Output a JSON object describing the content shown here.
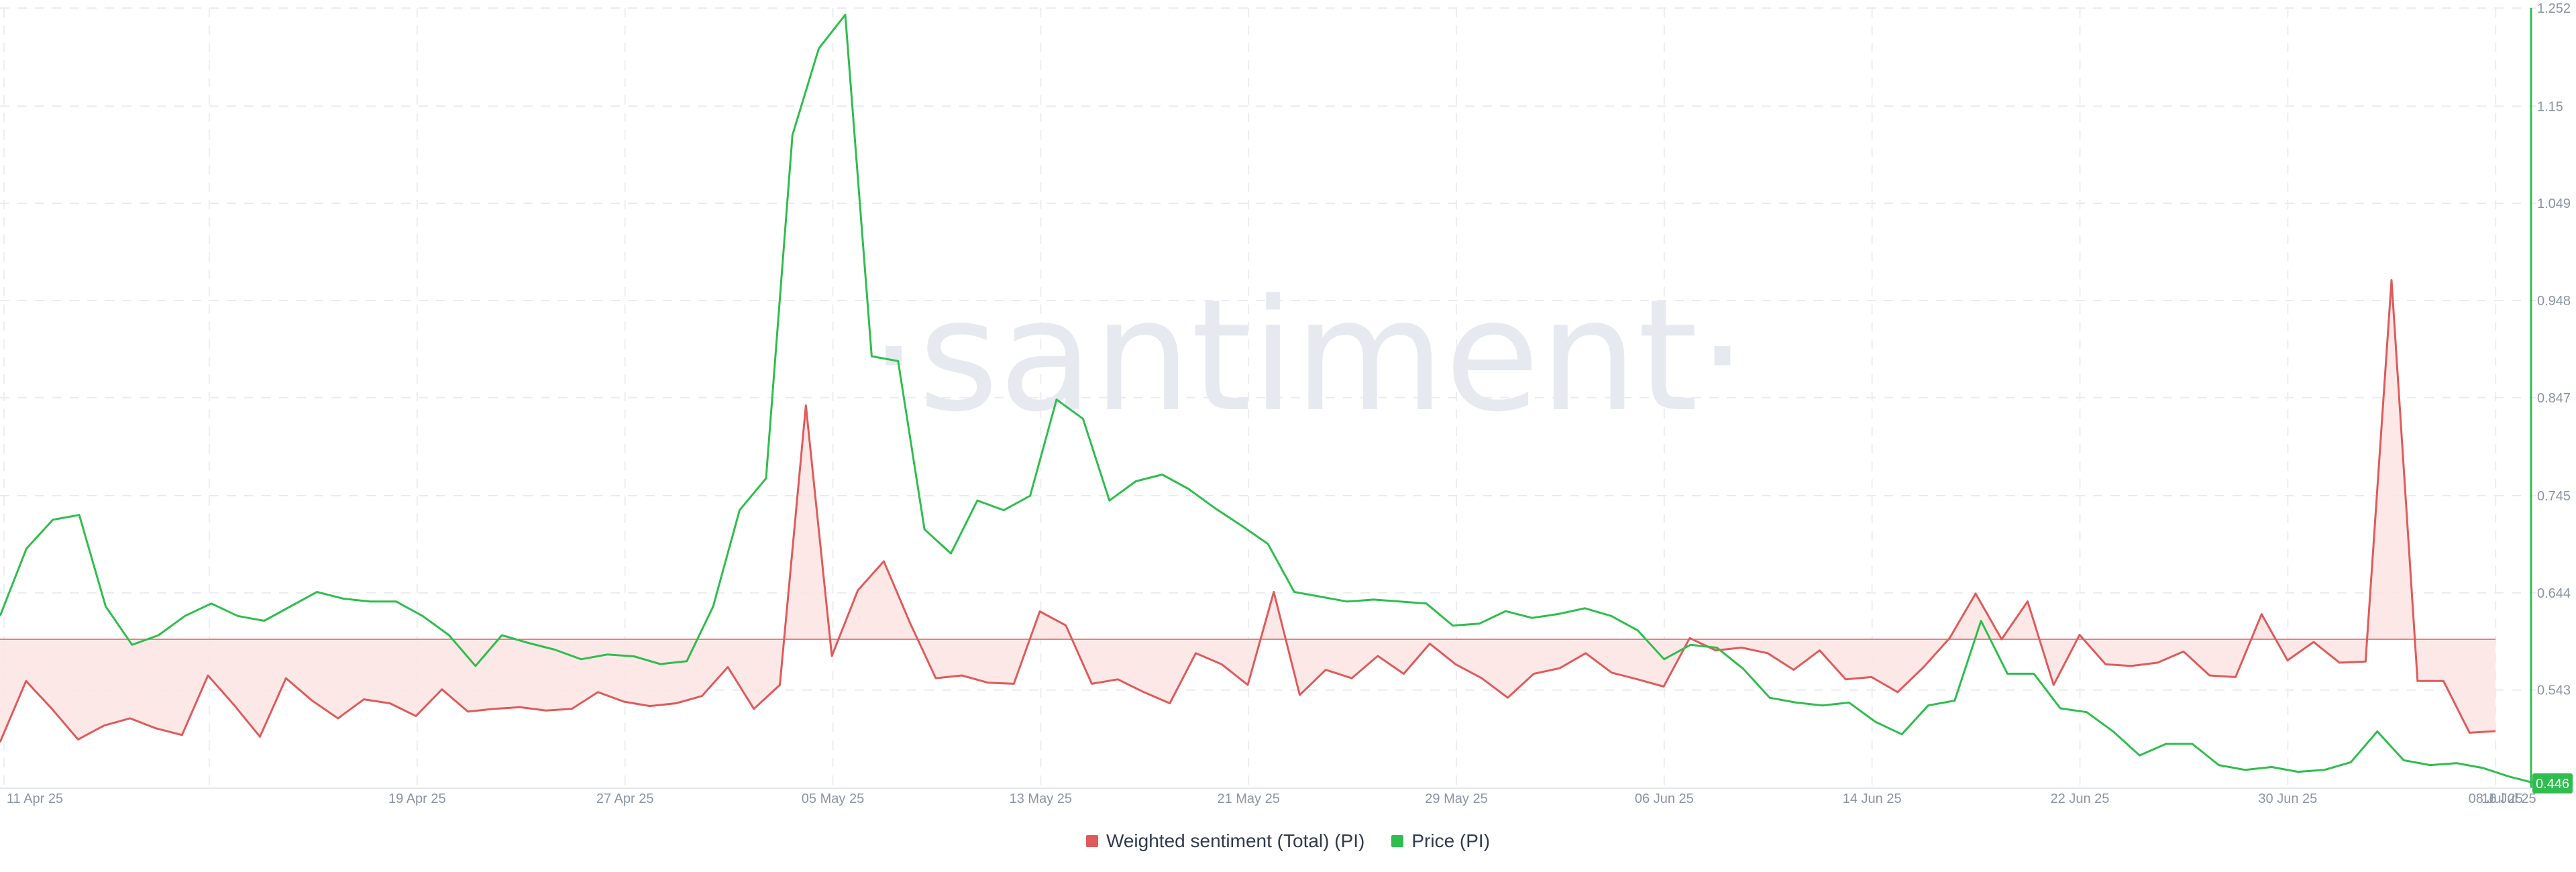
{
  "chart_data": {
    "type": "line",
    "watermark": "·santiment·",
    "x_labels": [
      "11 Apr 25",
      "19 Apr 25",
      "27 Apr 25",
      "05 May 25",
      "13 May 25",
      "21 May 25",
      "29 May 25",
      "06 Jun 25",
      "14 Jun 25",
      "22 Jun 25",
      "30 Jun 25",
      "08 Jul 25",
      "16 Jul 25"
    ],
    "right_axis_ticks": [
      "1.252",
      "1.15",
      "1.049",
      "0.948",
      "0.847",
      "0.745",
      "0.644",
      "0.543"
    ],
    "right_axis_range": [
      0.441,
      1.252
    ],
    "current_price_label": "0.446",
    "legend_position": "bottom-center",
    "grid": true,
    "colors": {
      "sentiment": "#e05a5a",
      "sentiment_fill": "#fde4e4",
      "price": "#2fbd4e",
      "badge": "#2fbd4e"
    },
    "series": [
      {
        "name": "Weighted sentiment (Total) (PI)",
        "unit_note": "",
        "baseline": 0,
        "values": [
          -1.85,
          -0.75,
          -1.25,
          -1.8,
          -1.55,
          -1.42,
          -1.6,
          -1.72,
          -0.65,
          -1.18,
          -1.75,
          -0.7,
          -1.1,
          -1.42,
          -1.08,
          -1.15,
          -1.38,
          -0.9,
          -1.3,
          -1.25,
          -1.22,
          -1.28,
          -1.25,
          -0.95,
          -1.12,
          -1.2,
          -1.15,
          -1.02,
          -0.5,
          -1.25,
          -0.82,
          4.2,
          -0.3,
          0.88,
          1.4,
          0.3,
          -0.7,
          -0.65,
          -0.78,
          -0.8,
          0.5,
          0.25,
          -0.8,
          -0.72,
          -0.95,
          -1.15,
          -0.25,
          -0.45,
          -0.82,
          0.85,
          -1.0,
          -0.55,
          -0.7,
          -0.3,
          -0.62,
          -0.08,
          -0.45,
          -0.7,
          -1.05,
          -0.62,
          -0.52,
          -0.25,
          -0.6,
          -0.72,
          -0.85,
          0.02,
          -0.2,
          -0.15,
          -0.25,
          -0.55,
          -0.2,
          -0.72,
          -0.68,
          -0.95,
          -0.5,
          0.02,
          0.82,
          0.0,
          0.68,
          -0.82,
          0.08,
          -0.45,
          -0.48,
          -0.42,
          -0.22,
          -0.65,
          -0.68,
          0.45,
          -0.38,
          -0.05,
          -0.42,
          -0.4,
          6.45,
          -0.75,
          -0.75,
          -1.68,
          -1.65
        ]
      },
      {
        "name": "Price (PI)",
        "values": [
          0.62,
          0.69,
          0.72,
          0.725,
          0.63,
          0.59,
          0.6,
          0.62,
          0.633,
          0.62,
          0.615,
          0.63,
          0.645,
          0.638,
          0.635,
          0.635,
          0.62,
          0.6,
          0.568,
          0.6,
          0.592,
          0.585,
          0.575,
          0.58,
          0.578,
          0.57,
          0.573,
          0.63,
          0.73,
          0.763,
          1.12,
          1.21,
          1.245,
          0.89,
          0.885,
          0.71,
          0.685,
          0.74,
          0.73,
          0.745,
          0.845,
          0.825,
          0.74,
          0.76,
          0.767,
          0.752,
          0.732,
          0.714,
          0.695,
          0.645,
          0.64,
          0.635,
          0.637,
          0.635,
          0.633,
          0.61,
          0.612,
          0.625,
          0.618,
          0.622,
          0.628,
          0.62,
          0.605,
          0.575,
          0.59,
          0.587,
          0.565,
          0.535,
          0.53,
          0.527,
          0.53,
          0.51,
          0.497,
          0.527,
          0.532,
          0.615,
          0.56,
          0.56,
          0.524,
          0.52,
          0.5,
          0.475,
          0.487,
          0.487,
          0.465,
          0.46,
          0.463,
          0.458,
          0.46,
          0.468,
          0.5,
          0.47,
          0.465,
          0.467,
          0.462,
          0.453,
          0.446
        ]
      }
    ]
  },
  "legend": [
    {
      "label": "Weighted sentiment (Total) (PI)",
      "color": "#e05a5a"
    },
    {
      "label": "Price (PI)",
      "color": "#2fbd4e"
    }
  ]
}
